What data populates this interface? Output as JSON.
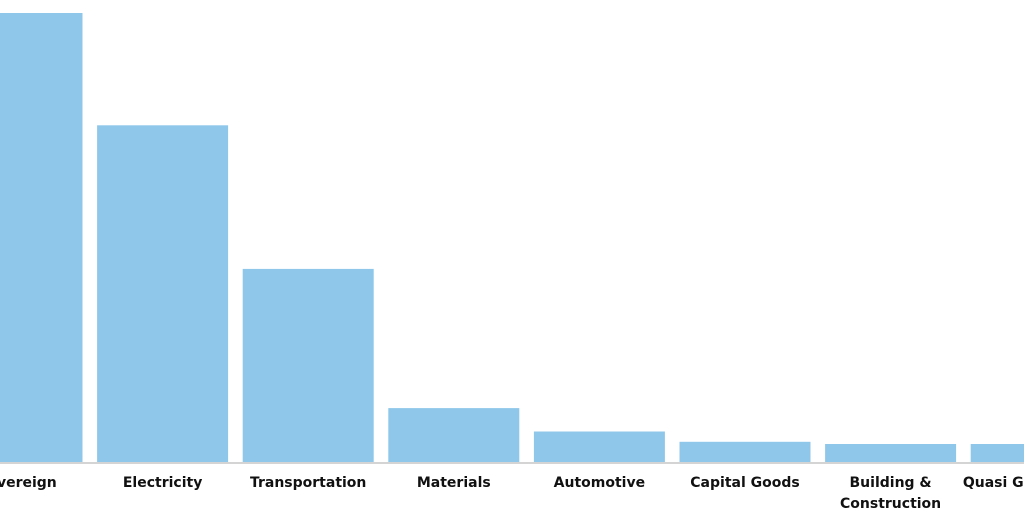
{
  "chart_data": {
    "type": "bar",
    "categories": [
      "Sovereign",
      "Electricity",
      "Transportation",
      "Materials",
      "Automotive",
      "Capital Goods",
      "Building & Construction",
      "Quasi Government"
    ],
    "category_label_lines": [
      [
        "Sovereign"
      ],
      [
        "Electricity"
      ],
      [
        "Transportation"
      ],
      [
        "Materials"
      ],
      [
        "Automotive"
      ],
      [
        "Capital Goods"
      ],
      [
        "Building &",
        "Construction"
      ],
      [
        "Quasi Government"
      ]
    ],
    "values": [
      100,
      75,
      43,
      12,
      6.8,
      4.5,
      4.0,
      4.0
    ],
    "title": "",
    "xlabel": "",
    "ylabel": "",
    "ylim": [
      0,
      100
    ],
    "grid": false,
    "legend": "none",
    "colors": {
      "bar": "#8fc7ea",
      "axis": "#d4d4d4",
      "text": "#111111",
      "background": "#ffffff"
    }
  }
}
